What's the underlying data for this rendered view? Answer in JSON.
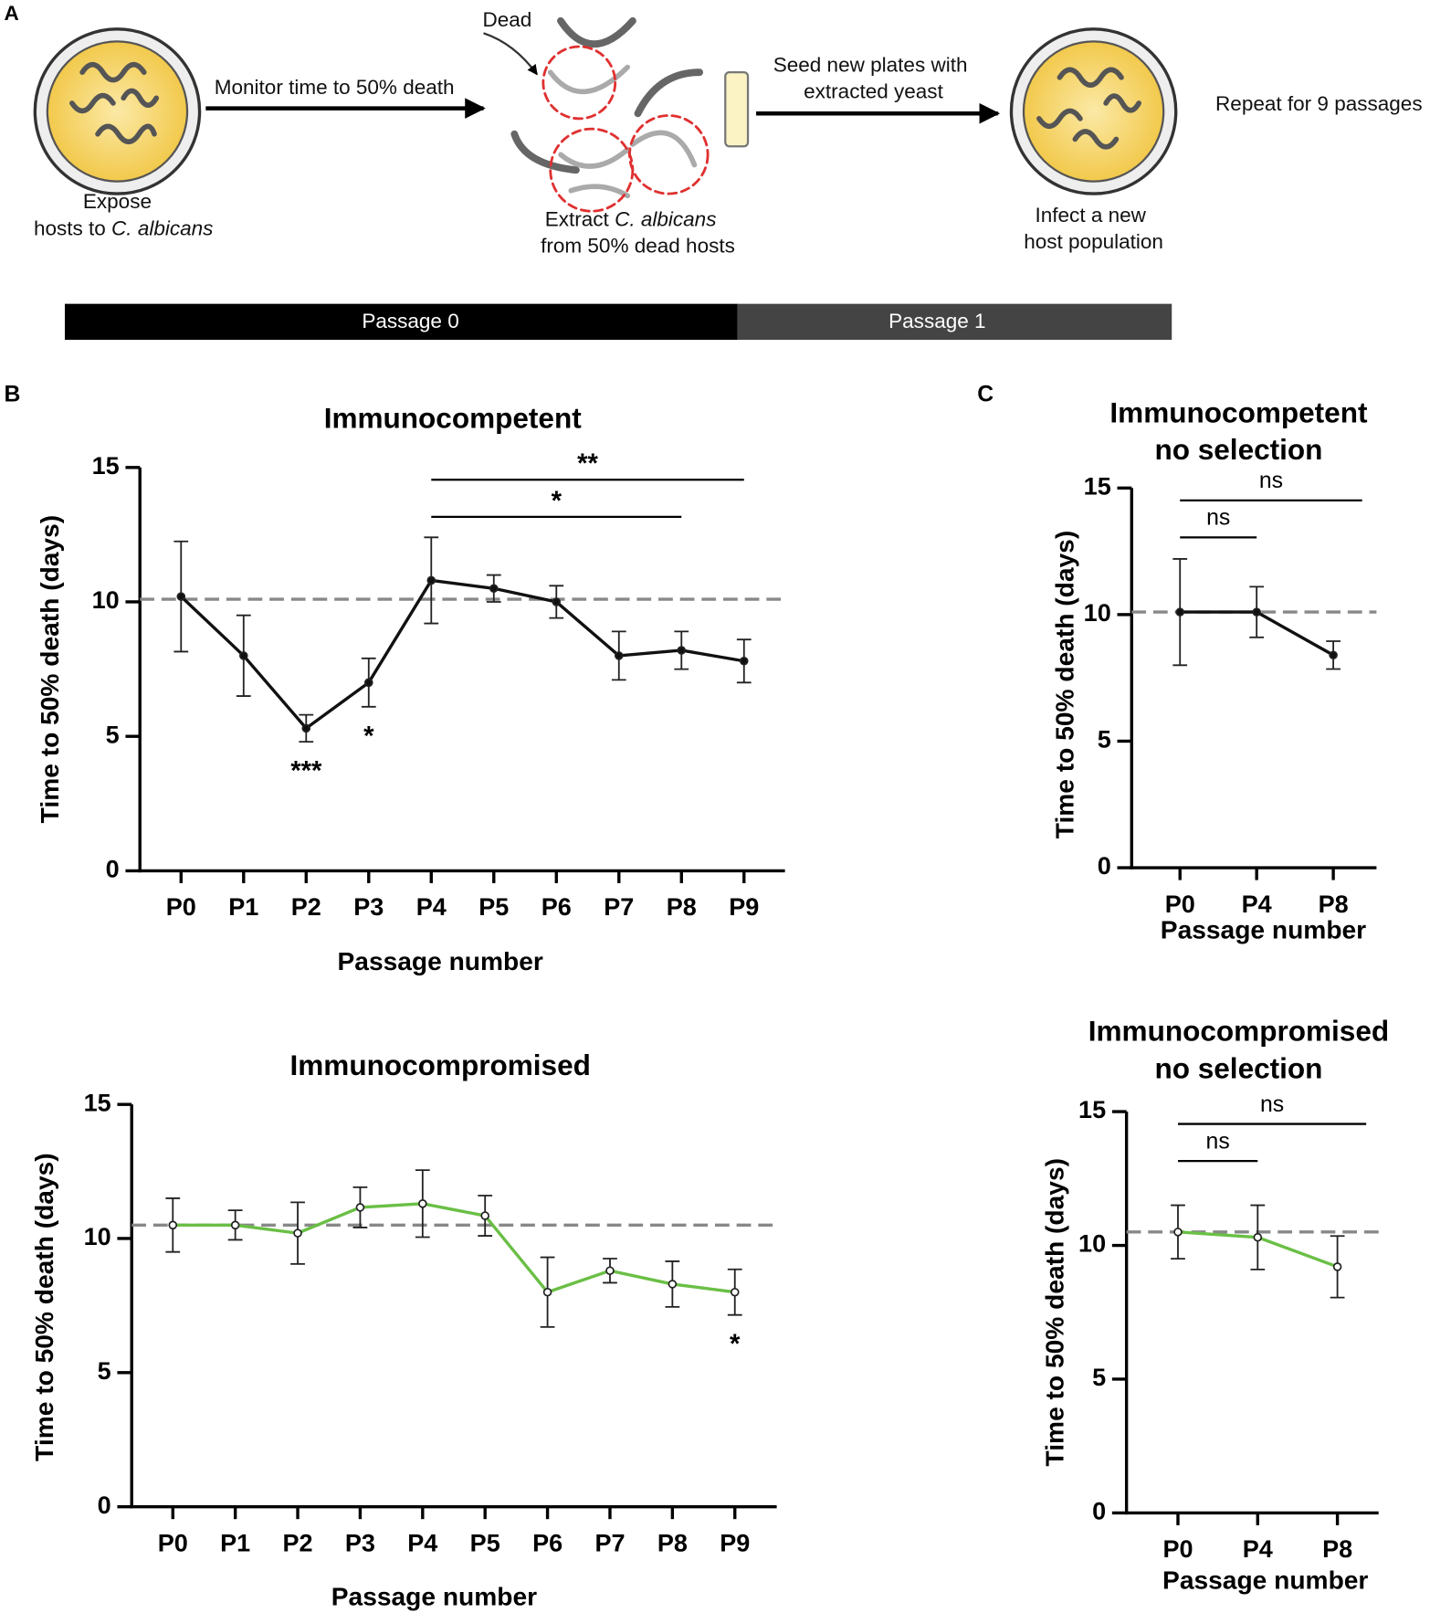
{
  "panel_a": {
    "label": "A",
    "expose": {
      "line1": "Expose",
      "line2": "hosts to ",
      "species": "C. albicans"
    },
    "monitor": "Monitor time to 50% death",
    "dead": "Dead",
    "extract": {
      "line1": "Extract ",
      "species": "C. albicans",
      "line2": "from 50% dead hosts"
    },
    "seed": {
      "line1": "Seed new plates with",
      "line2": "extracted yeast"
    },
    "infect": {
      "line1": "Infect a new",
      "line2": "host population"
    },
    "repeat": "Repeat for 9 passages",
    "passages": [
      "Passage 0",
      "Passage 1"
    ]
  },
  "panel_labels": [
    "B",
    "C"
  ],
  "chart_data": [
    {
      "type": "line",
      "title": [
        "Immunocompetent"
      ],
      "x_label": "Passage number",
      "y_label": "Time to 50% death (days)",
      "categories": [
        "P0",
        "P1",
        "P2",
        "P3",
        "P4",
        "P5",
        "P6",
        "P7",
        "P8",
        "P9"
      ],
      "series": [
        {
          "color": "#111111",
          "values": [
            10.2,
            8.0,
            5.3,
            7.0,
            10.8,
            10.5,
            10.0,
            8.0,
            8.2,
            7.8
          ],
          "errors": [
            2.05,
            1.5,
            0.5,
            0.9,
            1.6,
            0.5,
            0.6,
            0.9,
            0.7,
            0.8
          ]
        }
      ],
      "reference_line": 10.1,
      "ylim": [
        0,
        15
      ],
      "yticks": [
        0,
        5,
        10,
        15
      ],
      "annotations": [
        {
          "text": "***",
          "at": "P2"
        },
        {
          "text": "*",
          "at": "P3"
        },
        {
          "text": "*",
          "from": "P4",
          "to": "P8"
        },
        {
          "text": "**",
          "from": "P4",
          "to": "P9"
        }
      ]
    },
    {
      "type": "line",
      "title": [
        "Immunocompromised"
      ],
      "x_label": "Passage number",
      "y_label": "Time to 50% death (days)",
      "categories": [
        "P0",
        "P1",
        "P2",
        "P3",
        "P4",
        "P5",
        "P6",
        "P7",
        "P8",
        "P9"
      ],
      "series": [
        {
          "color": "#6abf45",
          "values": [
            10.5,
            10.5,
            10.2,
            11.16,
            11.3,
            10.85,
            8.0,
            8.8,
            8.3,
            8.0
          ],
          "errors": [
            1.0,
            0.55,
            1.15,
            0.75,
            1.25,
            0.75,
            1.3,
            0.45,
            0.85,
            0.85
          ]
        }
      ],
      "reference_line": 10.5,
      "ylim": [
        0,
        15
      ],
      "yticks": [
        0,
        5,
        10,
        15
      ],
      "annotations": [
        {
          "text": "*",
          "at": "P9"
        }
      ]
    },
    {
      "type": "line",
      "title": [
        "Immunocompetent",
        "no selection"
      ],
      "x_label": "Passage number",
      "y_label": "Time to 50% death (days)",
      "categories": [
        "P0",
        "P4",
        "P8"
      ],
      "series": [
        {
          "color": "#111111",
          "values": [
            10.1,
            10.1,
            8.4
          ],
          "errors": [
            2.1,
            1.0,
            0.55
          ]
        }
      ],
      "reference_line": 10.1,
      "ylim": [
        0,
        15
      ],
      "yticks": [
        0,
        5,
        10,
        15
      ],
      "annotations": [
        {
          "text": "ns",
          "from": "P0",
          "to": "P4"
        },
        {
          "text": "ns",
          "from": "P0",
          "to": "P8"
        }
      ]
    },
    {
      "type": "line",
      "title": [
        "Immunocompromised",
        "no selection"
      ],
      "x_label": "Passage number",
      "y_label": "Time to 50% death (days)",
      "categories": [
        "P0",
        "P4",
        "P8"
      ],
      "series": [
        {
          "color": "#6abf45",
          "values": [
            10.5,
            10.3,
            9.2
          ],
          "errors": [
            1.0,
            1.2,
            1.15
          ]
        }
      ],
      "reference_line": 10.5,
      "ylim": [
        0,
        15
      ],
      "yticks": [
        0,
        5,
        10,
        15
      ],
      "annotations": [
        {
          "text": "ns",
          "from": "P0",
          "to": "P4"
        },
        {
          "text": "ns",
          "from": "P0",
          "to": "P8"
        }
      ]
    }
  ]
}
